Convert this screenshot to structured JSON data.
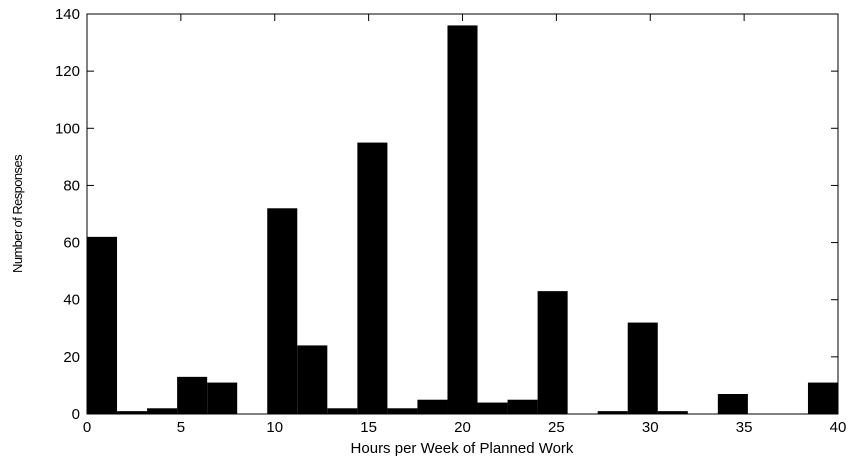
{
  "chart_data": {
    "type": "histogram",
    "xlabel": "Hours per Week of Planned Work",
    "ylabel": "Number of Responses",
    "bins": [
      0,
      1.6,
      3.2,
      4.8,
      6.4,
      8,
      9.6,
      11.2,
      12.8,
      14.4,
      16,
      17.6,
      19.2,
      20.8,
      22.4,
      24,
      25.6,
      27.2,
      28.8,
      30.4,
      32,
      33.6,
      35.2,
      36.8,
      38.4,
      40
    ],
    "counts": [
      62,
      1,
      2,
      13,
      11,
      0,
      72,
      24,
      2,
      95,
      2,
      5,
      136,
      4,
      5,
      43,
      0,
      1,
      32,
      1,
      0,
      7,
      0,
      0,
      11
    ],
    "color": "#000000",
    "xlim": [
      0,
      40
    ],
    "xticks": [
      0,
      5,
      10,
      15,
      20,
      25,
      30,
      35,
      40
    ],
    "ylim": [
      0,
      140
    ],
    "yticks": [
      0,
      20,
      40,
      60,
      80,
      100,
      120,
      140
    ]
  }
}
